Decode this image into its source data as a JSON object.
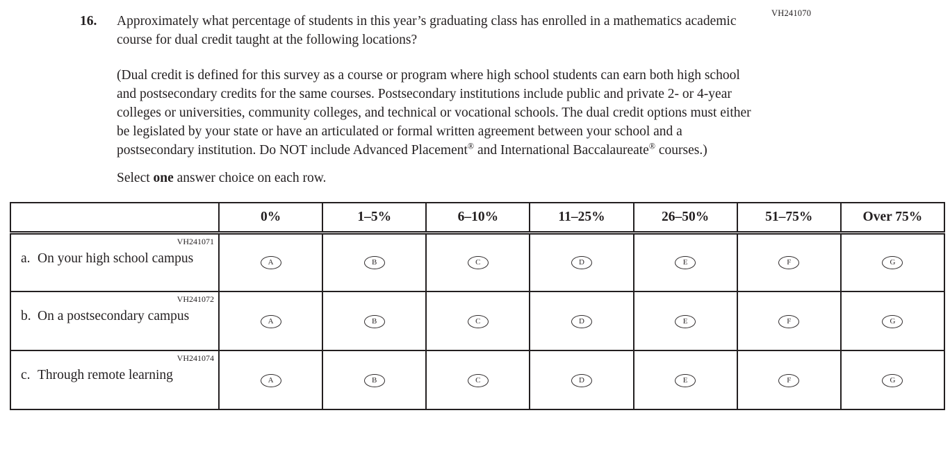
{
  "page": {
    "form_code_top": "VH241070",
    "text_color": "#231f20",
    "background": "#ffffff"
  },
  "question": {
    "number": "16.",
    "text": "Approximately what percentage of students in this year’s graduating class has enrolled in a mathematics academic course for dual credit taught at the following locations?",
    "definition_part1": "(Dual credit is defined for this survey as a course or program where high school students can earn both high school and postsecondary credits for the same courses. Postsecondary institutions include public and private 2- or 4-year colleges or universities, community colleges, and technical or vocational schools. The dual credit options must either be legislated by your state or have an articulated or formal written agreement between your school and a postsecondary institution. Do NOT include Advanced Placement",
    "reg_mark_1": "®",
    "definition_part2": " and International Baccalaureate",
    "reg_mark_2": "®",
    "definition_part3": " courses.)",
    "select_prefix": "Select ",
    "select_bold": "one",
    "select_suffix": " answer choice on each row."
  },
  "table": {
    "columns": [
      "0%",
      "1–5%",
      "6–10%",
      "11–25%",
      "26–50%",
      "51–75%",
      "Over 75%"
    ],
    "rows": [
      {
        "code": "VH241071",
        "letter": "a.",
        "label": "On your high school campus",
        "options": [
          "A",
          "B",
          "C",
          "D",
          "E",
          "F",
          "G"
        ]
      },
      {
        "code": "VH241072",
        "letter": "b.",
        "label": "On a postsecondary campus",
        "options": [
          "A",
          "B",
          "C",
          "D",
          "E",
          "F",
          "G"
        ]
      },
      {
        "code": "VH241074",
        "letter": "c.",
        "label": "Through remote learning",
        "options": [
          "A",
          "B",
          "C",
          "D",
          "E",
          "F",
          "G"
        ]
      }
    ]
  }
}
